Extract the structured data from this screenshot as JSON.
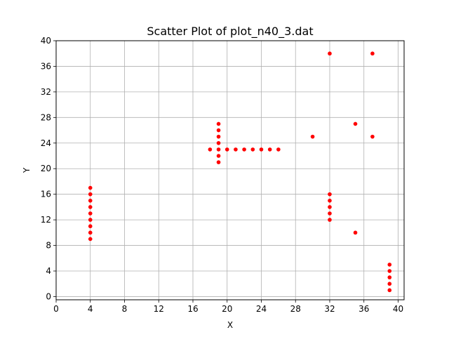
{
  "chart_data": {
    "type": "scatter",
    "title": "Scatter Plot of plot_n40_3.dat",
    "xlabel": "X",
    "ylabel": "Y",
    "xlim": [
      0,
      40.7
    ],
    "ylim": [
      -0.5,
      40
    ],
    "xticks": [
      0,
      4,
      8,
      12,
      16,
      20,
      24,
      28,
      32,
      36,
      40
    ],
    "yticks": [
      0,
      4,
      8,
      12,
      16,
      20,
      24,
      28,
      32,
      36,
      40
    ],
    "grid": true,
    "marker_color": "#ff0000",
    "series": [
      {
        "points": [
          [
            4,
            9
          ],
          [
            4,
            10
          ],
          [
            4,
            11
          ],
          [
            4,
            12
          ],
          [
            4,
            13
          ],
          [
            4,
            14
          ],
          [
            4,
            15
          ],
          [
            4,
            16
          ],
          [
            4,
            17
          ],
          [
            18,
            23
          ],
          [
            19,
            21
          ],
          [
            19,
            22
          ],
          [
            19,
            23
          ],
          [
            19,
            24
          ],
          [
            19,
            25
          ],
          [
            19,
            26
          ],
          [
            19,
            27
          ],
          [
            20,
            23
          ],
          [
            21,
            23
          ],
          [
            22,
            23
          ],
          [
            23,
            23
          ],
          [
            24,
            23
          ],
          [
            25,
            23
          ],
          [
            26,
            23
          ],
          [
            30,
            25
          ],
          [
            32,
            12
          ],
          [
            32,
            13
          ],
          [
            32,
            14
          ],
          [
            32,
            15
          ],
          [
            32,
            16
          ],
          [
            32,
            38
          ],
          [
            35,
            10
          ],
          [
            35,
            27
          ],
          [
            37,
            25
          ],
          [
            37,
            38
          ],
          [
            39,
            1
          ],
          [
            39,
            2
          ],
          [
            39,
            3
          ],
          [
            39,
            4
          ],
          [
            39,
            5
          ]
        ]
      }
    ]
  }
}
